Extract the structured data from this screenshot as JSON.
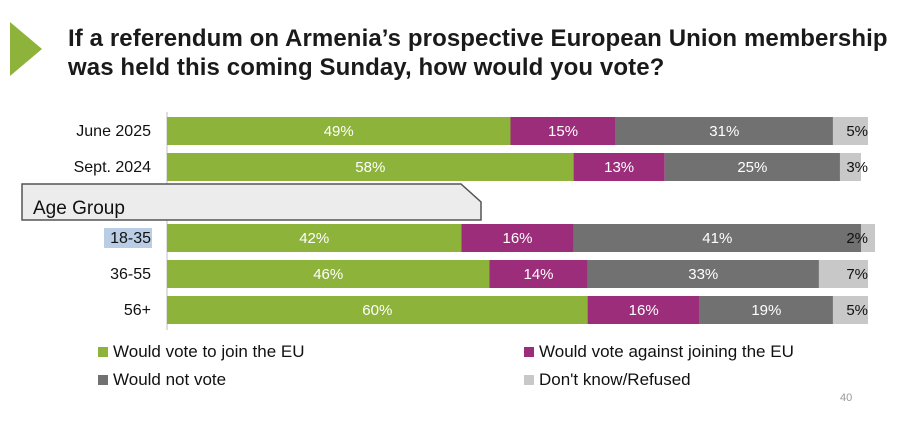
{
  "title": "If a referendum on Armenia’s prospective European Union membership was held this coming Sunday, how would you vote?",
  "page_number": "40",
  "group_header": "Age Group",
  "colors": {
    "join": "#8db33a",
    "against": "#9c2d7b",
    "not_vote": "#717171",
    "dont_know": "#c8c8c8",
    "accent": "#8db33a",
    "highlight": "#b9cde5"
  },
  "legend": [
    {
      "label": "Would vote to join the EU",
      "color": "#8db33a"
    },
    {
      "label": "Would vote against joining the EU",
      "color": "#9c2d7b"
    },
    {
      "label": "Would not vote",
      "color": "#717171"
    },
    {
      "label": "Don't know/Refused",
      "color": "#c8c8c8"
    }
  ],
  "chart_data": {
    "type": "bar",
    "orientation": "horizontal",
    "stacked": true,
    "categories": [
      "June 2025",
      "Sept. 2024",
      "18-35",
      "36-55",
      "56+"
    ],
    "series": [
      {
        "name": "Would vote to join the EU",
        "values": [
          49,
          58,
          42,
          46,
          60
        ],
        "labels": [
          "49%",
          "58%",
          "42%",
          "46%",
          "60%"
        ]
      },
      {
        "name": "Would vote against joining the EU",
        "values": [
          15,
          13,
          16,
          14,
          16
        ],
        "labels": [
          "15%",
          "13%",
          "16%",
          "14%",
          "16%"
        ]
      },
      {
        "name": "Would not vote",
        "values": [
          31,
          25,
          41,
          33,
          19
        ],
        "labels": [
          "31%",
          "25%",
          "41%",
          "33%",
          "19%"
        ]
      },
      {
        "name": "Don't know/Refused",
        "values": [
          5,
          3,
          2,
          7,
          5
        ],
        "labels": [
          "5%",
          "3%",
          "2%",
          "7%",
          "5%"
        ]
      }
    ],
    "highlighted_category": "18-35",
    "xlim": [
      0,
      100
    ]
  }
}
